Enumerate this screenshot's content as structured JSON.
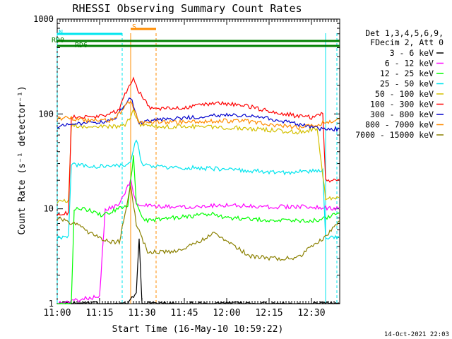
{
  "chart_data": {
    "type": "line",
    "title": "RHESSI Observing Summary Count Rates",
    "xlabel": "Start Time (16-May-10 10:59:22)",
    "ylabel": "Count Rate (s⁻¹ detector⁻¹)",
    "yscale": "log",
    "ylim": [
      1,
      1000
    ],
    "xlim_minutes": [
      0,
      100
    ],
    "x_ticks": [
      "11:00",
      "11:15",
      "11:30",
      "11:45",
      "12:00",
      "12:15",
      "12:30"
    ],
    "y_ticks": [
      "1",
      "10",
      "100",
      "1000"
    ],
    "legend_header": [
      "Det 1,3,4,5,6,9,",
      "FDecim 2, Att 0"
    ],
    "legend_position": "right",
    "timestamp": "14-Oct-2021 22:03",
    "flags": [
      {
        "label": "RD0",
        "color": "#008000",
        "start": 0,
        "end": 100
      },
      {
        "label": "RD6",
        "color": "#008000",
        "start": 0,
        "end": 100
      },
      {
        "label": "S",
        "color": "#ff8c00",
        "start": 26,
        "end": 35
      },
      {
        "label": "N",
        "color": "#00e5ee",
        "start": 0,
        "end": 23
      }
    ],
    "series": [
      {
        "name": "3 - 6 keV",
        "color": "#000000",
        "points": [
          [
            0,
            1
          ],
          [
            25,
            1
          ],
          [
            28,
            1.3
          ],
          [
            29,
            5
          ],
          [
            30,
            1
          ],
          [
            100,
            1
          ]
        ]
      },
      {
        "name": "6 - 12 keV",
        "color": "#ff00ff",
        "points": [
          [
            0,
            1
          ],
          [
            15,
            1.2
          ],
          [
            17,
            10
          ],
          [
            20,
            10.5
          ],
          [
            22,
            11
          ],
          [
            26,
            20
          ],
          [
            28,
            11
          ],
          [
            35,
            10.5
          ],
          [
            45,
            10.5
          ],
          [
            60,
            11
          ],
          [
            75,
            10.5
          ],
          [
            90,
            10.5
          ],
          [
            100,
            10
          ]
        ]
      },
      {
        "name": "12 - 25 keV",
        "color": "#00ff00",
        "points": [
          [
            0,
            1
          ],
          [
            5,
            1
          ],
          [
            6,
            10
          ],
          [
            10,
            10
          ],
          [
            16,
            8.5
          ],
          [
            20,
            9.5
          ],
          [
            25,
            11
          ],
          [
            27,
            35
          ],
          [
            28,
            11
          ],
          [
            31,
            7.5
          ],
          [
            40,
            8
          ],
          [
            50,
            8.5
          ],
          [
            55,
            9
          ],
          [
            60,
            8
          ],
          [
            70,
            7.8
          ],
          [
            80,
            7.5
          ],
          [
            90,
            7.5
          ],
          [
            95,
            8
          ],
          [
            100,
            9
          ]
        ]
      },
      {
        "name": "25 - 50 keV",
        "color": "#00e5ee",
        "points": [
          [
            0,
            5
          ],
          [
            4,
            5
          ],
          [
            5,
            30
          ],
          [
            10,
            28
          ],
          [
            20,
            28
          ],
          [
            26,
            30
          ],
          [
            28,
            55
          ],
          [
            30,
            29
          ],
          [
            40,
            27
          ],
          [
            50,
            27
          ],
          [
            60,
            26
          ],
          [
            70,
            25
          ],
          [
            80,
            24
          ],
          [
            90,
            25
          ],
          [
            94,
            25
          ],
          [
            95,
            5
          ],
          [
            100,
            5
          ]
        ]
      },
      {
        "name": "50 - 100 keV",
        "color": "#d4c000",
        "points": [
          [
            0,
            12
          ],
          [
            4,
            12
          ],
          [
            5,
            75
          ],
          [
            10,
            73
          ],
          [
            20,
            74
          ],
          [
            24,
            74
          ],
          [
            27,
            110
          ],
          [
            29,
            78
          ],
          [
            35,
            73
          ],
          [
            45,
            74
          ],
          [
            55,
            73
          ],
          [
            65,
            71
          ],
          [
            75,
            68
          ],
          [
            85,
            64
          ],
          [
            92,
            70
          ],
          [
            95,
            13
          ],
          [
            100,
            13
          ]
        ]
      },
      {
        "name": "100 - 300 keV",
        "color": "#ff0000",
        "points": [
          [
            0,
            9
          ],
          [
            4,
            9
          ],
          [
            5,
            92
          ],
          [
            10,
            92
          ],
          [
            16,
            95
          ],
          [
            22,
            110
          ],
          [
            25,
            190
          ],
          [
            27,
            240
          ],
          [
            29,
            170
          ],
          [
            33,
            115
          ],
          [
            45,
            115
          ],
          [
            55,
            130
          ],
          [
            65,
            125
          ],
          [
            75,
            108
          ],
          [
            85,
            95
          ],
          [
            90,
            92
          ],
          [
            94,
            102
          ],
          [
            95,
            20
          ],
          [
            100,
            20
          ]
        ]
      },
      {
        "name": "300 - 800 keV",
        "color": "#0000cd",
        "points": [
          [
            0,
            75
          ],
          [
            5,
            76
          ],
          [
            10,
            80
          ],
          [
            20,
            85
          ],
          [
            26,
            150
          ],
          [
            29,
            80
          ],
          [
            35,
            88
          ],
          [
            45,
            90
          ],
          [
            55,
            97
          ],
          [
            65,
            96
          ],
          [
            75,
            90
          ],
          [
            85,
            78
          ],
          [
            90,
            72
          ],
          [
            95,
            68
          ],
          [
            100,
            70
          ]
        ]
      },
      {
        "name": "800 - 7000 keV",
        "color": "#ff8c00",
        "points": [
          [
            0,
            90
          ],
          [
            5,
            90
          ],
          [
            10,
            85
          ],
          [
            20,
            86
          ],
          [
            26,
            140
          ],
          [
            29,
            80
          ],
          [
            35,
            82
          ],
          [
            45,
            82
          ],
          [
            55,
            84
          ],
          [
            65,
            85
          ],
          [
            75,
            78
          ],
          [
            85,
            72
          ],
          [
            90,
            75
          ],
          [
            95,
            82
          ],
          [
            100,
            88
          ]
        ]
      },
      {
        "name": "7000 - 15000 keV",
        "color": "#8b8000",
        "points": [
          [
            0,
            8
          ],
          [
            6,
            7
          ],
          [
            12,
            5.5
          ],
          [
            18,
            4.5
          ],
          [
            22,
            4.5
          ],
          [
            26,
            18
          ],
          [
            28,
            7
          ],
          [
            32,
            3.5
          ],
          [
            40,
            3.5
          ],
          [
            48,
            4.2
          ],
          [
            55,
            5.5
          ],
          [
            62,
            4.2
          ],
          [
            68,
            3.2
          ],
          [
            75,
            3
          ],
          [
            85,
            3
          ],
          [
            90,
            4
          ],
          [
            95,
            5
          ],
          [
            100,
            7.5
          ]
        ]
      }
    ]
  }
}
